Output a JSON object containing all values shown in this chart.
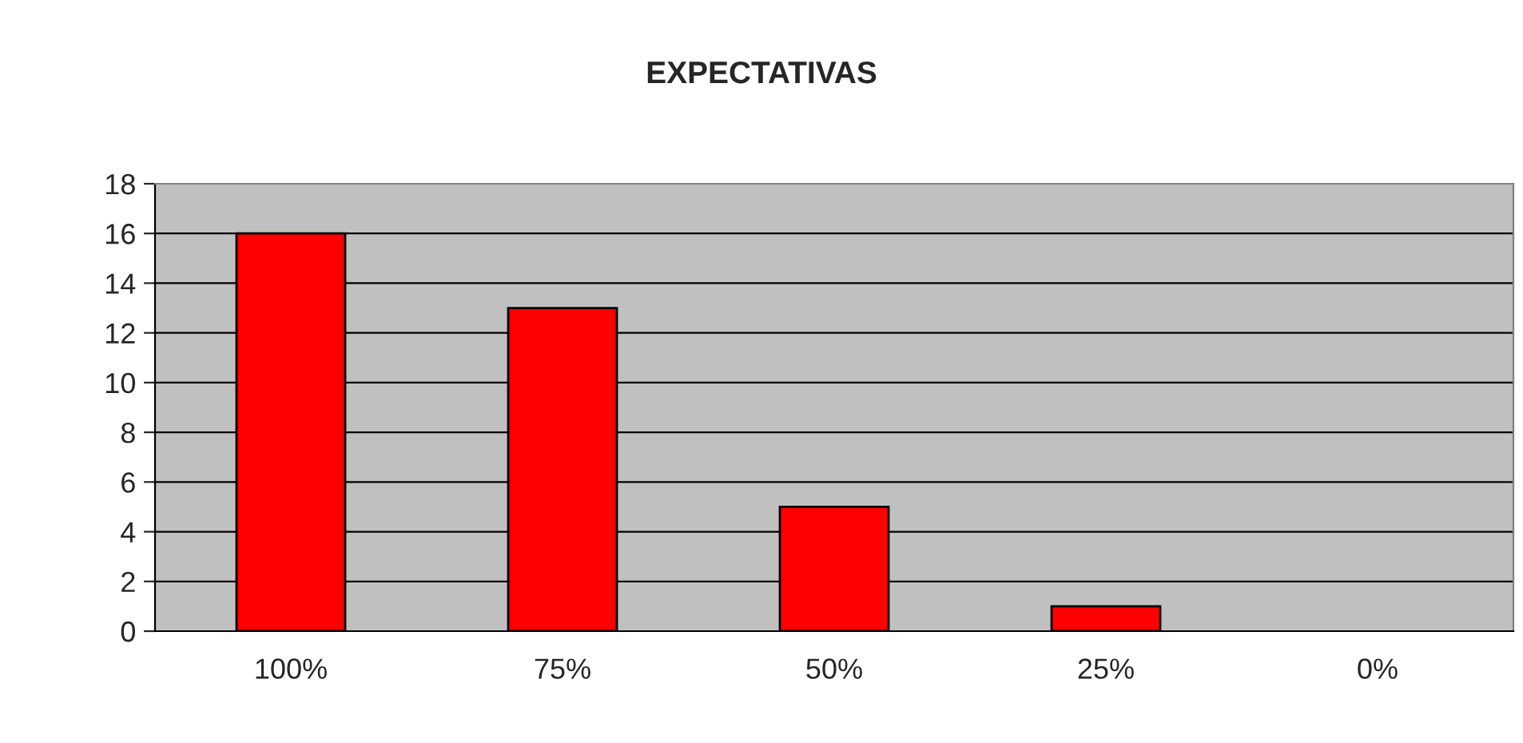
{
  "chart_data": {
    "type": "bar",
    "title": "EXPECTATIVAS",
    "categories": [
      "100%",
      "75%",
      "50%",
      "25%",
      "0%"
    ],
    "values": [
      16,
      13,
      5,
      1,
      0
    ],
    "color": "#ff0000",
    "ylim": [
      0,
      18
    ],
    "yticks": [
      0,
      2,
      4,
      6,
      8,
      10,
      12,
      14,
      16,
      18
    ],
    "grid": "y",
    "legend": false
  }
}
